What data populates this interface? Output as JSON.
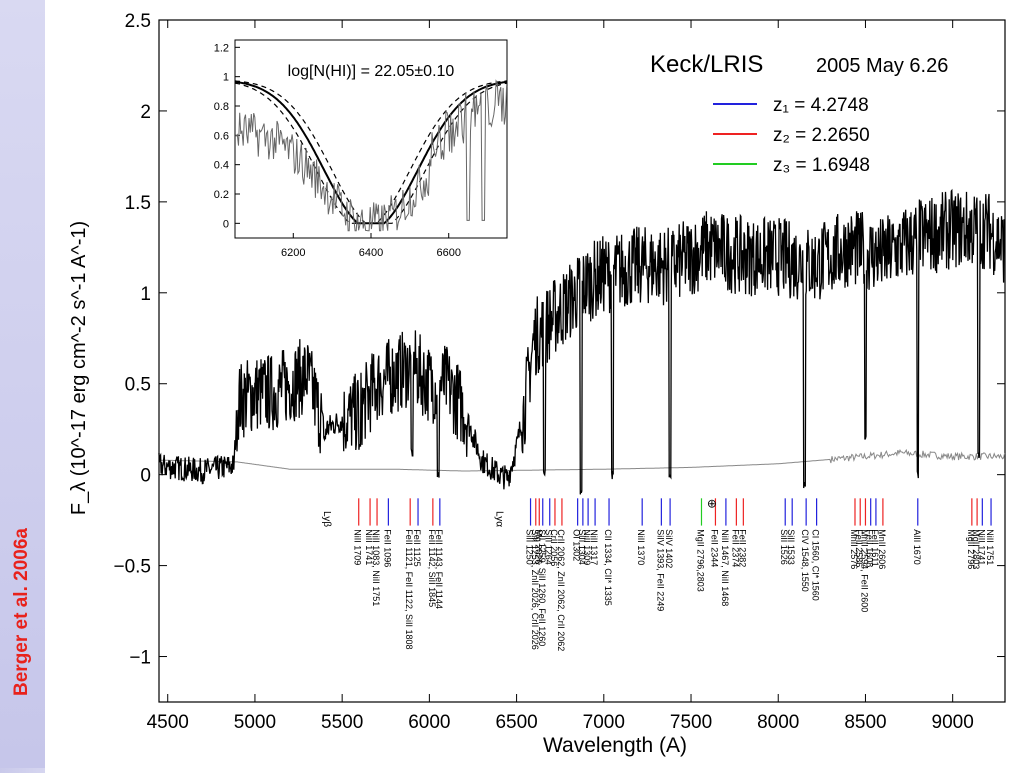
{
  "credit": "Berger et al. 2006a",
  "chart_data": {
    "type": "line",
    "title": "Keck/LRIS",
    "subtitle": "2005 May 6.26",
    "xlabel": "Wavelength  (A)",
    "ylabel": "F_λ (10^-17 erg cm^-2 s^-1 A^-1)",
    "xlim": [
      4450,
      9300
    ],
    "ylim": [
      -1.25,
      2.5
    ],
    "xticks": [
      4500,
      5000,
      5500,
      6000,
      6500,
      7000,
      7500,
      8000,
      8500,
      9000
    ],
    "yticks": [
      -1,
      -0.5,
      0,
      0.5,
      1,
      1.5,
      2,
      2.5
    ],
    "ytick_labels": [
      "−1",
      "−0.5",
      "0",
      "0.5",
      "1",
      "1.5",
      "2",
      "2.5"
    ],
    "legend": [
      {
        "label": "z₁ = 4.2748",
        "color": "#2222dd"
      },
      {
        "label": "z₂ = 2.2650",
        "color": "#ee2222"
      },
      {
        "label": "z₃ = 1.6948",
        "color": "#22cc22"
      }
    ],
    "spectrum_anchors": [
      [
        4450,
        0.05
      ],
      [
        4700,
        0.02
      ],
      [
        4880,
        0.05
      ],
      [
        4900,
        0.4
      ],
      [
        5000,
        0.45
      ],
      [
        5100,
        0.45
      ],
      [
        5200,
        0.5
      ],
      [
        5300,
        0.55
      ],
      [
        5400,
        0.25
      ],
      [
        5500,
        0.3
      ],
      [
        5600,
        0.35
      ],
      [
        5700,
        0.5
      ],
      [
        5800,
        0.55
      ],
      [
        5900,
        0.6
      ],
      [
        6000,
        0.5
      ],
      [
        6100,
        0.5
      ],
      [
        6200,
        0.35
      ],
      [
        6300,
        0.08
      ],
      [
        6400,
        0.0
      ],
      [
        6450,
        -0.02
      ],
      [
        6500,
        0.15
      ],
      [
        6550,
        0.4
      ],
      [
        6600,
        0.75
      ],
      [
        6700,
        0.85
      ],
      [
        6800,
        0.95
      ],
      [
        6900,
        1.05
      ],
      [
        7000,
        1.1
      ],
      [
        7200,
        1.15
      ],
      [
        7400,
        1.15
      ],
      [
        7600,
        1.25
      ],
      [
        7800,
        1.2
      ],
      [
        8000,
        1.2
      ],
      [
        8200,
        1.15
      ],
      [
        8400,
        1.25
      ],
      [
        8600,
        1.2
      ],
      [
        8800,
        1.3
      ],
      [
        9000,
        1.35
      ],
      [
        9200,
        1.35
      ],
      [
        9300,
        1.25
      ]
    ],
    "absorption_dips": [
      [
        5400,
        0.2
      ],
      [
        5600,
        0.15
      ],
      [
        5900,
        0.12
      ],
      [
        6050,
        0.0
      ],
      [
        6660,
        0.02
      ],
      [
        6870,
        -0.1
      ],
      [
        7050,
        0.0
      ],
      [
        7380,
        0.0
      ],
      [
        8150,
        -0.05
      ],
      [
        8500,
        0.2
      ],
      [
        8800,
        0.0
      ],
      [
        9150,
        0.1
      ]
    ],
    "error_spectrum_anchors": [
      [
        4450,
        0.08
      ],
      [
        4900,
        0.07
      ],
      [
        5200,
        0.03
      ],
      [
        5800,
        0.03
      ],
      [
        6200,
        0.02
      ],
      [
        7000,
        0.03
      ],
      [
        7500,
        0.04
      ],
      [
        8000,
        0.06
      ],
      [
        8500,
        0.1
      ],
      [
        8700,
        0.12
      ],
      [
        9000,
        0.1
      ],
      [
        9300,
        0.1
      ]
    ],
    "line_ids": [
      {
        "label": "Lyβ",
        "z": 1,
        "x": 5430,
        "greek": true
      },
      {
        "label": "Lyα",
        "z": 1,
        "x": 6420,
        "greek": true
      },
      {
        "label": "NiII 1709",
        "x": 5595,
        "z": 2
      },
      {
        "label": "NiII 1741",
        "x": 5660,
        "z": 2
      },
      {
        "label": "NiII 1083, NiII 1751",
        "x": 5700,
        "z": 2
      },
      {
        "label": "FeII 1096",
        "x": 5765,
        "z": 1
      },
      {
        "label": "FeII 1121, FeII 1122, SiII 1808",
        "x": 5890,
        "z": 2
      },
      {
        "label": "FeII 1125",
        "x": 5935,
        "z": 1
      },
      {
        "label": "FeII 1142, SiII 1845",
        "x": 6020,
        "z": 2
      },
      {
        "label": "FeII 1143, FeII 1144",
        "x": 6060,
        "z": 1
      },
      {
        "label": "SiII 1250",
        "x": 6580,
        "z": 1
      },
      {
        "label": "SiII 1253, ZnII 2026, CrII 2026",
        "x": 6610,
        "z": 2
      },
      {
        "label": "Mg 2026",
        "x": 6630,
        "z": 2
      },
      {
        "label": "SII 1259, SiII 1260, FeII 1260",
        "x": 6650,
        "z": 1
      },
      {
        "label": "SiII 1264",
        "x": 6690,
        "z": 1
      },
      {
        "label": "CrII 2056",
        "x": 6720,
        "z": 2
      },
      {
        "label": "CrII 2062, ZnII 2062, CrII 2062",
        "x": 6760,
        "z": 2
      },
      {
        "label": "OI 1302",
        "x": 6850,
        "z": 1
      },
      {
        "label": "SiII 1304",
        "x": 6880,
        "z": 1
      },
      {
        "label": "NiII 1309",
        "x": 6910,
        "z": 1
      },
      {
        "label": "NiII 1317",
        "x": 6950,
        "z": 1
      },
      {
        "label": "CII 1334, CII* 1335",
        "x": 7030,
        "z": 1
      },
      {
        "label": "NiII 1370",
        "x": 7220,
        "z": 1
      },
      {
        "label": "SiIV 1393, FeII 2249",
        "x": 7330,
        "z": 1
      },
      {
        "label": "SiIV 1402",
        "x": 7380,
        "z": 1
      },
      {
        "label": "MgII 2796,2803",
        "x": 7560,
        "z": 3
      },
      {
        "label": "FeII 2344",
        "x": 7640,
        "z": 2
      },
      {
        "label": "NiII 1467, NiII 1468",
        "x": 7700,
        "z": 1
      },
      {
        "label": "FeII 2374",
        "x": 7760,
        "z": 2
      },
      {
        "label": "FeII 2382",
        "x": 7800,
        "z": 2
      },
      {
        "label": "SiII 1526",
        "x": 8040,
        "z": 1
      },
      {
        "label": "SiII 1533",
        "x": 8080,
        "z": 1
      },
      {
        "label": "CIV 1548, 1550",
        "x": 8160,
        "z": 1
      },
      {
        "label": "CI 1560, CI* 1560",
        "x": 8220,
        "z": 1
      },
      {
        "label": "MnII 2576",
        "x": 8440,
        "z": 2
      },
      {
        "label": "FeII 2586",
        "x": 8470,
        "z": 2
      },
      {
        "label": "MnII 2594, FeII 2600",
        "x": 8500,
        "z": 2
      },
      {
        "label": "FeII 1608",
        "x": 8530,
        "z": 1
      },
      {
        "label": "FeII 1611",
        "x": 8560,
        "z": 1
      },
      {
        "label": "MnII 2606",
        "x": 8600,
        "z": 2
      },
      {
        "label": "AlII 1670",
        "x": 8800,
        "z": 1
      },
      {
        "label": "MgII 2796",
        "x": 9110,
        "z": 2
      },
      {
        "label": "MgII 2803",
        "x": 9140,
        "z": 2
      },
      {
        "label": "NiII 1741",
        "x": 9170,
        "z": 1
      },
      {
        "label": "NiII 1751",
        "x": 9220,
        "z": 1
      }
    ],
    "earth_symbol": {
      "label": "⊕",
      "x": 7620
    },
    "inset": {
      "annotation": "log[N(HI)] = 22.05±0.10",
      "xlim": [
        6050,
        6750
      ],
      "ylim": [
        -0.1,
        1.25
      ],
      "xticks": [
        6200,
        6400,
        6600
      ],
      "yticks": [
        0,
        0.2,
        0.4,
        0.6,
        0.8,
        1,
        1.2
      ]
    }
  }
}
